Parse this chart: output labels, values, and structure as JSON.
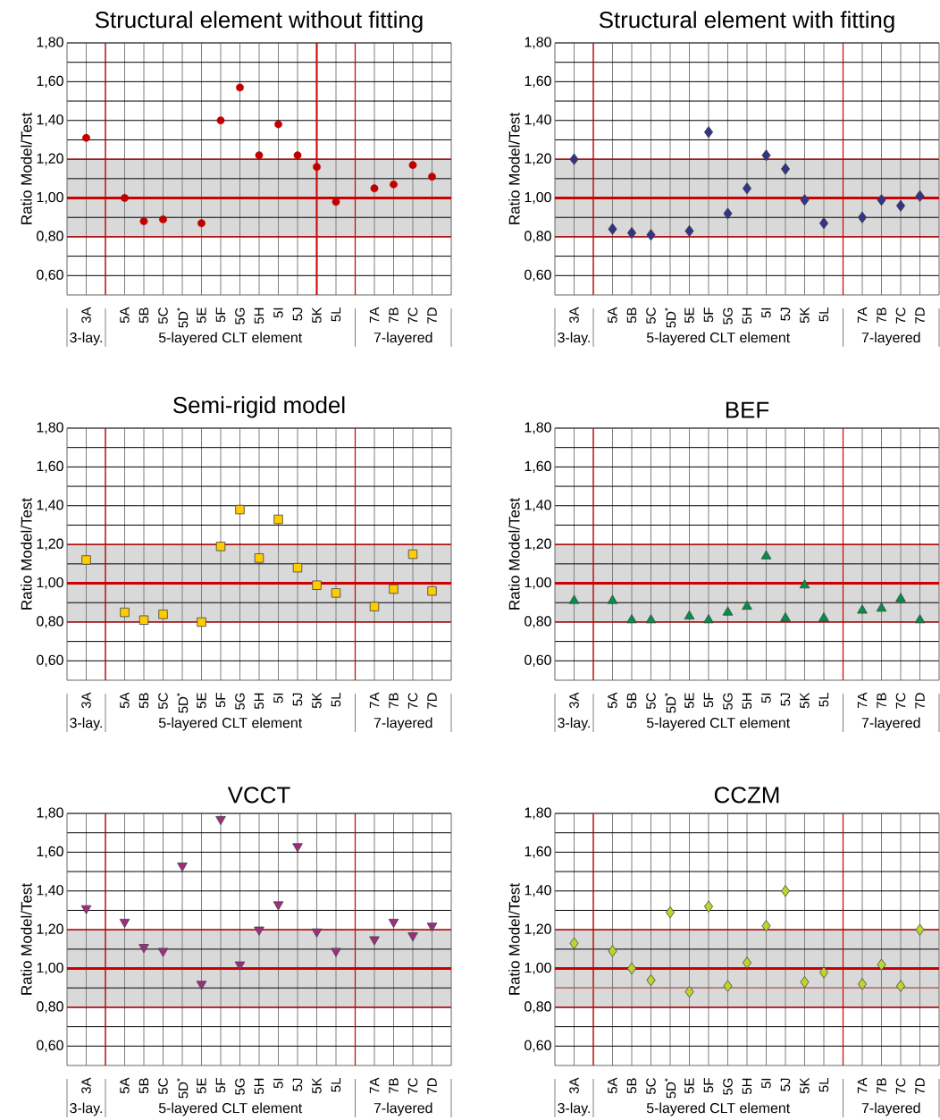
{
  "chart_data": [
    {
      "type": "scatter",
      "title": "Structural element without fitting",
      "ylabel": "Ratio Model/Test",
      "marker": "circle",
      "grid": true,
      "categories": [
        "3A",
        null,
        "5A",
        "5B",
        "5C",
        "5D$^{*}$",
        "5E",
        "5F",
        "5G",
        "5H",
        "5I",
        "5J",
        "5K",
        "5L",
        null,
        "7A",
        "7B",
        "7C",
        "7D"
      ],
      "series": [
        {
          "color": "#c00000",
          "values": [
            1.31,
            null,
            1.0,
            0.88,
            0.89,
            null,
            0.87,
            1.4,
            1.57,
            1.22,
            1.38,
            1.22,
            1.16,
            0.98,
            null,
            1.05,
            1.07,
            1.17,
            1.11
          ]
        }
      ],
      "ylim": [
        0.5,
        1.8
      ],
      "yticks": [
        {
          "value": 0.6,
          "label": "0,60"
        },
        {
          "value": 0.7,
          "label": null
        },
        {
          "value": 0.8,
          "label": "0,80"
        },
        {
          "value": 0.9,
          "label": null
        },
        {
          "value": 1.0,
          "label": "1,00"
        },
        {
          "value": 1.1,
          "label": null
        },
        {
          "value": 1.2,
          "label": "1,20"
        },
        {
          "value": 1.3,
          "label": null
        },
        {
          "value": 1.4,
          "label": "1,40"
        },
        {
          "value": 1.5,
          "label": null
        },
        {
          "value": 1.6,
          "label": "1,60"
        },
        {
          "value": 1.7,
          "label": null
        },
        {
          "value": 1.8,
          "label": "1,80"
        }
      ],
      "bands": [
        {
          "axis": "y",
          "from": 0.8,
          "to": 1.2,
          "color": "#d9d9d9"
        }
      ],
      "ref_lines": [
        {
          "axis": "y",
          "value": 1.0,
          "color": "#cc0000"
        },
        {
          "axis": "x",
          "value": "5K",
          "color": "#cc0000"
        }
      ],
      "annotations": [
        "3-lay.",
        "5-layered CLT element",
        "7-layered"
      ]
    },
    {
      "type": "scatter",
      "title": "Structural element with fitting",
      "ylabel": "Ratio Model/Test",
      "marker": "diamond",
      "grid": true,
      "categories": [
        "3A",
        null,
        "5A",
        "5B",
        "5C",
        "5D$^{*}$",
        "5E",
        "5F",
        "5G",
        "5H",
        "5I",
        "5J",
        "5K",
        "5L",
        null,
        "7A",
        "7B",
        "7C",
        "7D"
      ],
      "series": [
        {
          "color": "#333388",
          "values": [
            1.2,
            null,
            0.84,
            0.82,
            0.81,
            null,
            0.83,
            1.34,
            0.92,
            1.05,
            1.22,
            1.15,
            0.99,
            0.87,
            null,
            0.9,
            0.99,
            0.96,
            1.01
          ]
        }
      ],
      "ylim": [
        0.5,
        1.8
      ],
      "yticks": [
        {
          "value": 0.6,
          "label": "0,60"
        },
        {
          "value": 0.7,
          "label": null
        },
        {
          "value": 0.8,
          "label": "0,80"
        },
        {
          "value": 0.9,
          "label": null
        },
        {
          "value": 1.0,
          "label": "1,00"
        },
        {
          "value": 1.1,
          "label": null
        },
        {
          "value": 1.2,
          "label": "1,20"
        },
        {
          "value": 1.3,
          "label": null
        },
        {
          "value": 1.4,
          "label": "1,40"
        },
        {
          "value": 1.5,
          "label": null
        },
        {
          "value": 1.6,
          "label": "1,60"
        },
        {
          "value": 1.7,
          "label": null
        },
        {
          "value": 1.8,
          "label": "1,80"
        }
      ],
      "bands": [
        {
          "axis": "y",
          "from": 0.8,
          "to": 1.2,
          "color": "#d9d9d9"
        }
      ],
      "ref_lines": [
        {
          "axis": "y",
          "value": 1.0,
          "color": "#cc0000"
        }
      ],
      "annotations": [
        "3-lay.",
        "5-layered CLT element",
        "7-layered"
      ]
    },
    {
      "type": "scatter",
      "title": "Semi-rigid model",
      "ylabel": "Ratio Model/Test",
      "marker": "square",
      "grid": true,
      "categories": [
        "3A",
        null,
        "5A",
        "5B",
        "5C",
        "5D$^{*}$",
        "5E",
        "5F",
        "5G",
        "5H",
        "5I",
        "5J",
        "5K",
        "5L",
        null,
        "7A",
        "7B",
        "7C",
        "7D"
      ],
      "series": [
        {
          "color": "#ffcc00",
          "values": [
            1.12,
            null,
            0.85,
            0.81,
            0.84,
            null,
            0.8,
            1.19,
            1.38,
            1.13,
            1.33,
            1.08,
            0.99,
            0.95,
            null,
            0.88,
            0.97,
            1.15,
            0.96
          ]
        }
      ],
      "ylim": [
        0.5,
        1.8
      ],
      "yticks": [
        {
          "value": 0.6,
          "label": "0,60"
        },
        {
          "value": 0.7,
          "label": null
        },
        {
          "value": 0.8,
          "label": "0,80"
        },
        {
          "value": 0.9,
          "label": null
        },
        {
          "value": 1.0,
          "label": "1,00"
        },
        {
          "value": 1.1,
          "label": null
        },
        {
          "value": 1.2,
          "label": "1,20"
        },
        {
          "value": 1.3,
          "label": null
        },
        {
          "value": 1.4,
          "label": "1,40"
        },
        {
          "value": 1.5,
          "label": null
        },
        {
          "value": 1.6,
          "label": "1,60"
        },
        {
          "value": 1.7,
          "label": null
        },
        {
          "value": 1.8,
          "label": "1,80"
        }
      ],
      "bands": [
        {
          "axis": "y",
          "from": 0.8,
          "to": 1.2,
          "color": "#d9d9d9"
        }
      ],
      "ref_lines": [
        {
          "axis": "y",
          "value": 1.0,
          "color": "#cc0000"
        }
      ],
      "annotations": [
        "3-lay.",
        "5-layered CLT element",
        "7-layered"
      ]
    },
    {
      "type": "scatter",
      "title": "BEF",
      "ylabel": "Ratio Model/Test",
      "marker": "triangle",
      "grid": true,
      "categories": [
        "3A",
        null,
        "5A",
        "5B",
        "5C",
        "5D$^{*}$",
        "5E",
        "5F",
        "5G",
        "5H",
        "5I",
        "5J",
        "5K",
        "5L",
        null,
        "7A",
        "7B",
        "7C",
        "7D"
      ],
      "series": [
        {
          "color": "#00914a",
          "values": [
            0.91,
            null,
            0.91,
            0.81,
            0.81,
            null,
            0.83,
            0.81,
            0.85,
            0.88,
            1.14,
            0.82,
            0.99,
            0.82,
            null,
            0.86,
            0.87,
            0.92,
            0.81
          ]
        }
      ],
      "ylim": [
        0.5,
        1.8
      ],
      "yticks": [
        {
          "value": 0.6,
          "label": "0,60"
        },
        {
          "value": 0.7,
          "label": null
        },
        {
          "value": 0.8,
          "label": "0,80"
        },
        {
          "value": 0.9,
          "label": null
        },
        {
          "value": 1.0,
          "label": "1,00"
        },
        {
          "value": 1.1,
          "label": null
        },
        {
          "value": 1.2,
          "label": "1,20"
        },
        {
          "value": 1.3,
          "label": null
        },
        {
          "value": 1.4,
          "label": "1,40"
        },
        {
          "value": 1.5,
          "label": null
        },
        {
          "value": 1.6,
          "label": "1,60"
        },
        {
          "value": 1.7,
          "label": null
        },
        {
          "value": 1.8,
          "label": "1,80"
        }
      ],
      "bands": [
        {
          "axis": "y",
          "from": 0.8,
          "to": 1.2,
          "color": "#d9d9d9"
        }
      ],
      "ref_lines": [
        {
          "axis": "y",
          "value": 1.0,
          "color": "#cc0000"
        }
      ],
      "annotations": [
        "3-lay.",
        "5-layered CLT element",
        "7-layered"
      ]
    },
    {
      "type": "scatter",
      "title": "VCCT",
      "ylabel": "Ratio Model/Test",
      "marker": "triangle-down",
      "grid": true,
      "categories": [
        "3A",
        null,
        "5A",
        "5B",
        "5C",
        "5D$^{*}$",
        "5E",
        "5F",
        "5G",
        "5H",
        "5I",
        "5J",
        "5K",
        "5L",
        null,
        "7A",
        "7B",
        "7C",
        "7D"
      ],
      "series": [
        {
          "color": "#a02c80",
          "values": [
            1.31,
            null,
            1.24,
            1.11,
            1.09,
            1.53,
            0.92,
            1.77,
            1.02,
            1.2,
            1.33,
            1.63,
            1.19,
            1.09,
            null,
            1.15,
            1.24,
            1.17,
            1.22
          ]
        }
      ],
      "ylim": [
        0.5,
        1.8
      ],
      "yticks": [
        {
          "value": 0.6,
          "label": "0,60"
        },
        {
          "value": 0.7,
          "label": null
        },
        {
          "value": 0.8,
          "label": "0,80"
        },
        {
          "value": 0.9,
          "label": null
        },
        {
          "value": 1.0,
          "label": "1,00"
        },
        {
          "value": 1.1,
          "label": null
        },
        {
          "value": 1.2,
          "label": "1,20"
        },
        {
          "value": 1.3,
          "label": null
        },
        {
          "value": 1.4,
          "label": "1,40"
        },
        {
          "value": 1.5,
          "label": null
        },
        {
          "value": 1.6,
          "label": "1,60"
        },
        {
          "value": 1.7,
          "label": null
        },
        {
          "value": 1.8,
          "label": "1,80"
        }
      ],
      "bands": [
        {
          "axis": "y",
          "from": 0.8,
          "to": 1.2,
          "color": "#d9d9d9"
        }
      ],
      "ref_lines": [
        {
          "axis": "y",
          "value": 1.0,
          "color": "#cc0000"
        }
      ],
      "annotations": [
        "3-lay.",
        "5-layered CLT element",
        "7-layered"
      ]
    },
    {
      "type": "scatter",
      "title": "CCZM",
      "ylabel": "Ratio Model/Test",
      "marker": "diamond",
      "grid": true,
      "categories": [
        "3A",
        null,
        "5A",
        "5B",
        "5C",
        "5D$^{*}$",
        "5E",
        "5F",
        "5G",
        "5H",
        "5I",
        "5J",
        "5K",
        "5L",
        null,
        "7A",
        "7B",
        "7C",
        "7D"
      ],
      "series": [
        {
          "color": "#bcd42c",
          "values": [
            1.13,
            null,
            1.09,
            1.0,
            0.94,
            1.29,
            0.88,
            1.32,
            0.91,
            1.03,
            1.22,
            1.4,
            0.93,
            0.98,
            null,
            0.92,
            1.02,
            0.91,
            1.2
          ]
        }
      ],
      "ylim": [
        0.5,
        1.8
      ],
      "yticks": [
        {
          "value": 0.6,
          "label": "0,60"
        },
        {
          "value": 0.7,
          "label": null
        },
        {
          "value": 0.8,
          "label": "0,80"
        },
        {
          "value": 0.9,
          "label": null
        },
        {
          "value": 1.0,
          "label": "1,00"
        },
        {
          "value": 1.1,
          "label": null
        },
        {
          "value": 1.2,
          "label": "1,20"
        },
        {
          "value": 1.3,
          "label": null
        },
        {
          "value": 1.4,
          "label": "1,40"
        },
        {
          "value": 1.5,
          "label": null
        },
        {
          "value": 1.6,
          "label": "1,60"
        },
        {
          "value": 1.7,
          "label": null
        },
        {
          "value": 1.8,
          "label": "1,80"
        }
      ],
      "bands": [
        {
          "axis": "y",
          "from": 0.8,
          "to": 1.2,
          "color": "#d9d9d9"
        }
      ],
      "ref_lines": [
        {
          "axis": "y",
          "value": 1.0,
          "color": "#cc0000"
        },
        {
          "axis": "y",
          "value": 0.9,
          "color": "#e08080"
        }
      ],
      "annotations": [
        "3-lay.",
        "5-layered CLT element",
        "7-layered"
      ]
    }
  ]
}
